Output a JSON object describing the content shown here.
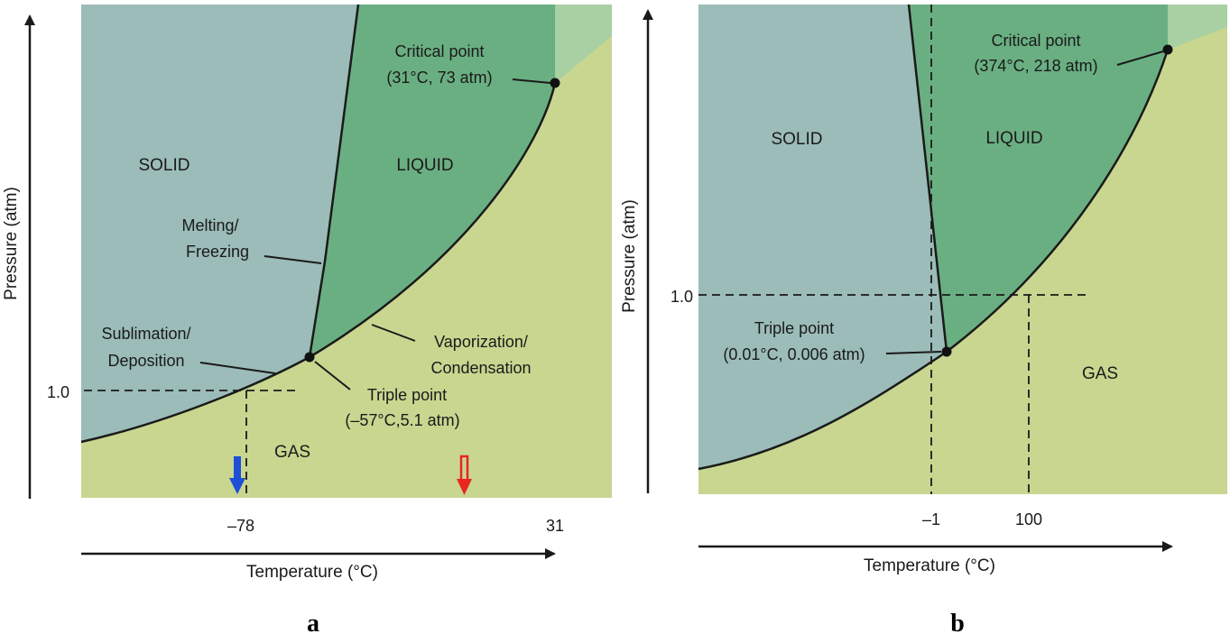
{
  "panels": [
    {
      "letter": "a",
      "regions": {
        "solid": "SOLID",
        "liquid": "LIQUID",
        "gas": "GAS"
      },
      "x_axis_title": "Temperature (°C)",
      "y_axis_title": "Pressure (atm)",
      "x_ticks": [
        "–78",
        "31"
      ],
      "y_ticks": [
        "1.0"
      ],
      "critical_point": {
        "label": "Critical point",
        "value": "(31°C, 73 atm)"
      },
      "triple_point": {
        "label": "Triple point",
        "value": "(–57°C,5.1 atm)"
      },
      "melting_label": {
        "line1": "Melting/",
        "line2": "Freezing"
      },
      "sublimation_label": {
        "line1": "Sublimation/",
        "line2": "Deposition"
      },
      "vaporization_label": {
        "line1": "Vaporization/",
        "line2": "Condensation"
      },
      "arrow_colors": {
        "blue": "#1f4fd6",
        "red": "#e8271e"
      }
    },
    {
      "letter": "b",
      "regions": {
        "solid": "SOLID",
        "liquid": "LIQUID",
        "gas": "GAS"
      },
      "x_axis_title": "Temperature (°C)",
      "y_axis_title": "Pressure (atm)",
      "x_ticks": [
        "–1",
        "100"
      ],
      "y_ticks": [
        "1.0"
      ],
      "critical_point": {
        "label": "Critical point",
        "value": "(374°C, 218 atm)"
      },
      "triple_point": {
        "label": "Triple point",
        "value": "(0.01°C, 0.006 atm)"
      }
    }
  ],
  "colors": {
    "solid": "#9bbcb8",
    "liquid": "#6aaf82",
    "gas": "#c8d690",
    "supercritical": "#a8d0a2"
  }
}
